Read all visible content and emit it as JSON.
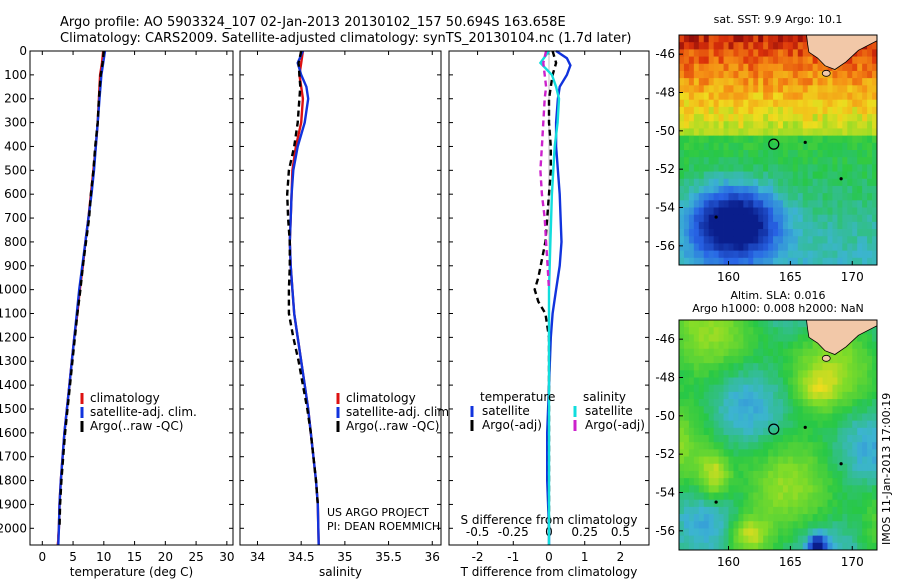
{
  "header": {
    "line1": "Argo profile: AO 5903324_107 02-Jan-2013 20130102_157 50.694S 163.658E",
    "line2": "Climatology: CARS2009. Satellite-adjusted climatology: synTS_20130104.nc (1.7d later)"
  },
  "credits": {
    "project": "US ARGO PROJECT",
    "pi": "PI: DEAN ROEMMICH",
    "imos": "IMOS 11-Jan-2013 17:00:19"
  },
  "colors": {
    "climatology": "#dd1111",
    "satellite": "#1133dd",
    "argo": "#000000",
    "sat_salinity": "#11dddd",
    "argo_salinity": "#cc22cc",
    "land": "#f2c8a8"
  },
  "chart_data": [
    {
      "type": "line",
      "name": "temperature-panel",
      "xlabel": "temperature (deg C)",
      "ylabel": "",
      "xlim": [
        -2,
        31
      ],
      "ylim": [
        2070,
        0
      ],
      "xticks": [
        0,
        5,
        10,
        15,
        20,
        25,
        30
      ],
      "yticks": [
        0,
        100,
        200,
        300,
        400,
        500,
        600,
        700,
        800,
        900,
        1000,
        1100,
        1200,
        1300,
        1400,
        1500,
        1600,
        1700,
        1800,
        1900,
        2000
      ],
      "legend": [
        "climatology",
        "satellite-adj. clim.",
        "Argo(..raw -QC)"
      ],
      "series": [
        {
          "name": "climatology",
          "style": "solid",
          "color": "#dd1111",
          "x": [
            9.9,
            9.7,
            9.4,
            9.2,
            9.0,
            8.7,
            8.3,
            7.9,
            7.5,
            7.0,
            6.6,
            6.1,
            5.7,
            5.2,
            4.8,
            4.4,
            4.0,
            3.6,
            3.3,
            3.0,
            2.8,
            2.7,
            2.6,
            2.6,
            2.5
          ],
          "y": [
            0,
            50,
            100,
            200,
            300,
            400,
            500,
            600,
            700,
            800,
            900,
            1000,
            1100,
            1200,
            1300,
            1400,
            1500,
            1600,
            1700,
            1800,
            1900,
            2000,
            2030,
            2050,
            2070
          ]
        },
        {
          "name": "satellite-adj. clim.",
          "style": "solid",
          "color": "#1133dd",
          "x": [
            10.2,
            9.9,
            9.6,
            9.3,
            9.0,
            8.7,
            8.4,
            8.0,
            7.5,
            7.0,
            6.5,
            6.0,
            5.6,
            5.2,
            4.8,
            4.4,
            4.0,
            3.6,
            3.3,
            3.0,
            2.8,
            2.7,
            2.6
          ],
          "y": [
            0,
            50,
            100,
            200,
            300,
            400,
            500,
            600,
            700,
            800,
            900,
            1000,
            1100,
            1200,
            1300,
            1400,
            1500,
            1600,
            1700,
            1800,
            1900,
            2000,
            2070
          ]
        },
        {
          "name": "Argo(..raw -QC)",
          "style": "dashed",
          "color": "#000000",
          "x": [
            10.0,
            9.8,
            9.5,
            9.2,
            9.0,
            8.6,
            8.3,
            7.9,
            7.6,
            7.1,
            6.6,
            6.2,
            5.7,
            5.3,
            4.9,
            4.5,
            4.1,
            3.7,
            3.4,
            3.1,
            2.9,
            2.8
          ],
          "y": [
            0,
            50,
            100,
            200,
            300,
            400,
            500,
            600,
            700,
            800,
            900,
            1000,
            1100,
            1200,
            1300,
            1400,
            1500,
            1600,
            1700,
            1800,
            1900,
            2000
          ]
        }
      ]
    },
    {
      "type": "line",
      "name": "salinity-panel",
      "xlabel": "salinity",
      "ylabel": "",
      "xlim": [
        33.8,
        36.1
      ],
      "ylim": [
        2070,
        0
      ],
      "xticks": [
        34,
        34.5,
        35,
        35.5,
        36
      ],
      "legend": [
        "climatology",
        "satellite-adj. clim.",
        "Argo(..raw -QC)"
      ],
      "series": [
        {
          "name": "climatology",
          "style": "solid",
          "color": "#dd1111",
          "x": [
            34.52,
            34.5,
            34.48,
            34.5,
            34.52,
            34.5,
            34.44,
            34.4,
            34.39,
            34.38,
            34.37,
            34.38,
            34.4,
            34.42,
            34.46,
            34.5,
            34.54,
            34.58,
            34.61,
            34.64,
            34.67,
            34.69,
            34.7
          ],
          "y": [
            0,
            50,
            100,
            150,
            200,
            300,
            400,
            500,
            600,
            700,
            800,
            900,
            1000,
            1100,
            1200,
            1300,
            1400,
            1500,
            1600,
            1700,
            1800,
            1900,
            2070
          ]
        },
        {
          "name": "satellite-adj. clim.",
          "style": "solid",
          "color": "#1133dd",
          "x": [
            34.52,
            34.46,
            34.5,
            34.56,
            34.58,
            34.54,
            34.46,
            34.41,
            34.39,
            34.38,
            34.37,
            34.38,
            34.4,
            34.42,
            34.46,
            34.5,
            34.54,
            34.58,
            34.61,
            34.64,
            34.67,
            34.69,
            34.7
          ],
          "y": [
            0,
            50,
            100,
            150,
            200,
            300,
            400,
            500,
            600,
            700,
            800,
            900,
            1000,
            1100,
            1200,
            1300,
            1400,
            1500,
            1600,
            1700,
            1800,
            1900,
            2070
          ]
        },
        {
          "name": "Argo(..raw -QC)",
          "style": "dashed",
          "color": "#000000",
          "x": [
            34.5,
            34.47,
            34.48,
            34.49,
            34.48,
            34.46,
            34.42,
            34.36,
            34.34,
            34.35,
            34.37,
            34.37,
            34.36,
            34.36,
            34.41,
            34.47,
            34.52,
            34.57,
            34.61,
            34.64,
            34.67,
            34.69
          ],
          "y": [
            0,
            50,
            100,
            150,
            200,
            300,
            400,
            500,
            600,
            700,
            800,
            900,
            1000,
            1100,
            1200,
            1300,
            1400,
            1500,
            1600,
            1700,
            1800,
            1900
          ]
        }
      ]
    },
    {
      "type": "line",
      "name": "difference-panel",
      "xlabel": "T difference from climatology",
      "top_xlabel": "S difference from climatology",
      "ylabel": "",
      "xlim": [
        -2.8,
        2.8
      ],
      "ylim": [
        2070,
        0
      ],
      "xticks": [
        -2,
        -1,
        0,
        1,
        2
      ],
      "top_xticks": [
        -0.5,
        -0.25,
        0,
        0.25,
        0.5
      ],
      "legend_groups": [
        {
          "title": "temperature",
          "items": [
            "satellite",
            "Argo(-adj)"
          ]
        },
        {
          "title": "salinity",
          "items": [
            "satellite",
            "Argo(-adj)"
          ]
        }
      ],
      "series": [
        {
          "name": "temperature satellite",
          "style": "solid",
          "color": "#1133dd",
          "x": [
            0.2,
            0.5,
            0.6,
            0.5,
            0.3,
            0.25,
            0.2,
            0.2,
            0.3,
            0.35,
            0.3,
            0.2,
            0.1,
            0.05,
            0.0,
            -0.05,
            -0.05,
            0,
            0
          ],
          "y": [
            0,
            30,
            60,
            100,
            150,
            200,
            300,
            400,
            600,
            800,
            900,
            1000,
            1100,
            1200,
            1400,
            1600,
            1800,
            2000,
            2070
          ]
        },
        {
          "name": "temperature Argo(-adj)",
          "style": "dashed",
          "color": "#000000",
          "x": [
            0.1,
            0.2,
            0.1,
            0.0,
            0.0,
            0.05,
            0.05,
            0.0,
            -0.1,
            -0.3,
            -0.4,
            -0.3,
            -0.1,
            0.0,
            0.0,
            0.0
          ],
          "y": [
            0,
            50,
            100,
            200,
            300,
            400,
            500,
            600,
            800,
            950,
            1000,
            1050,
            1100,
            1200,
            1400,
            2000
          ]
        },
        {
          "name": "salinity satellite",
          "style": "solid",
          "color": "#11dddd",
          "x": [
            0.0,
            -0.06,
            0.02,
            0.05,
            0.07,
            0.06,
            0.04,
            0.03,
            0.02,
            0.01,
            0.0,
            0.0,
            0.0,
            0.0
          ],
          "y": [
            0,
            50,
            100,
            150,
            200,
            300,
            400,
            500,
            600,
            800,
            1000,
            1200,
            1600,
            2070
          ]
        },
        {
          "name": "salinity Argo(-adj)",
          "style": "dashed",
          "color": "#cc22cc",
          "x": [
            -0.02,
            -0.04,
            -0.03,
            -0.02,
            -0.03,
            -0.04,
            -0.05,
            -0.06,
            -0.05,
            -0.03,
            -0.02,
            -0.01,
            0.0
          ],
          "y": [
            0,
            50,
            100,
            150,
            200,
            300,
            400,
            500,
            600,
            700,
            800,
            900,
            1000
          ]
        }
      ]
    },
    {
      "type": "heatmap",
      "name": "sst-map",
      "title": "sat. SST: 9.9 Argo: 10.1",
      "xlim": [
        156,
        172
      ],
      "ylim": [
        -57,
        -45
      ],
      "xticks": [
        160,
        165,
        170
      ],
      "yticks": [
        -46,
        -48,
        -50,
        -52,
        -54,
        -56
      ],
      "profile_marker": {
        "lon": 163.658,
        "lat": -50.694
      }
    },
    {
      "type": "heatmap",
      "name": "sla-map",
      "title": "Altim. SLA: 0.016",
      "subtitle": "Argo h1000: 0.008 h2000: NaN",
      "xlim": [
        156,
        172
      ],
      "ylim": [
        -57,
        -45
      ],
      "xticks": [
        160,
        165,
        170
      ],
      "yticks": [
        -46,
        -48,
        -50,
        -52,
        -54,
        -56
      ],
      "profile_marker": {
        "lon": 163.658,
        "lat": -50.694
      }
    }
  ]
}
